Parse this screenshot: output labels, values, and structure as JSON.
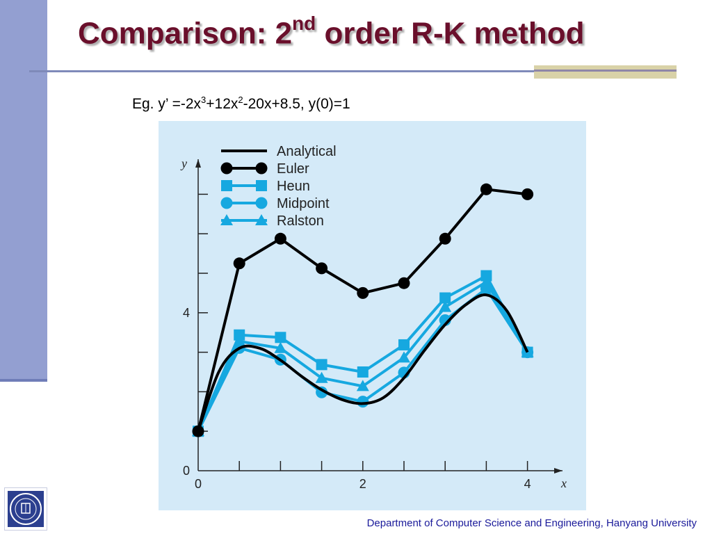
{
  "slide": {
    "title_main": "Comparison: 2",
    "title_sup": "nd",
    "title_rest": " order R-K method",
    "eq_prefix": "Eg. y’ =-2x",
    "eq_sup1": "3",
    "eq_mid": "+12x",
    "eq_sup2": "2",
    "eq_suffix": "-20x+8.5, y(0)=1",
    "footer": "Department of Computer Science and Engineering, Hanyang University",
    "logo_icon": "university-seal-icon"
  },
  "colors": {
    "title": "#6a0f2b",
    "sidebar": "#939fd1",
    "chart_bg": "#d4eaf8",
    "analytical": "#000000",
    "euler": "#000000",
    "rk": "#16a8e0",
    "footer": "#1a1a9a"
  },
  "chart_data": {
    "type": "line",
    "xlabel": "x",
    "ylabel": "y",
    "xlim": [
      0,
      4.4
    ],
    "ylim": [
      0,
      8.3
    ],
    "x_ticks": [
      0,
      0.5,
      1,
      1.5,
      2,
      2.5,
      3,
      3.5,
      4
    ],
    "x_tick_labels": [
      "0",
      "",
      "",
      "",
      "2",
      "",
      "",
      "",
      "4"
    ],
    "y_ticks": [
      1,
      2,
      3,
      4,
      5,
      6,
      7
    ],
    "y_tick_labels": [
      "",
      "",
      "",
      "4",
      "",
      "",
      ""
    ],
    "y_origin_label": "0",
    "legend_position": "top-left",
    "x": [
      0,
      0.5,
      1,
      1.5,
      2,
      2.5,
      3,
      3.5,
      4
    ],
    "series": [
      {
        "name": "Analytical",
        "marker": "none",
        "x": [
          0,
          0.25,
          0.5,
          0.75,
          1,
          1.25,
          1.5,
          1.75,
          2,
          2.25,
          2.5,
          2.75,
          3,
          3.25,
          3.5,
          3.75,
          4
        ],
        "values": [
          1,
          2.5,
          3.1,
          3.1,
          2.8,
          2.4,
          2.05,
          1.8,
          1.7,
          1.85,
          2.35,
          3.05,
          3.7,
          4.2,
          4.45,
          4.05,
          3.0
        ]
      },
      {
        "name": "Euler",
        "marker": "circle-black",
        "values": [
          1,
          5.25,
          5.875,
          5.125,
          4.5,
          4.75,
          5.875,
          7.125,
          7.0
        ]
      },
      {
        "name": "Heun",
        "marker": "square",
        "values": [
          1,
          3.4375,
          3.375,
          2.6875,
          2.5,
          3.1875,
          4.375,
          4.9375,
          3.0
        ]
      },
      {
        "name": "Midpoint",
        "marker": "circle",
        "values": [
          1,
          3.109375,
          2.8125,
          1.984375,
          1.75,
          2.484375,
          3.8125,
          4.609375,
          3.0
        ]
      },
      {
        "name": "Ralston",
        "marker": "triangle",
        "values": [
          1,
          3.277,
          3.102,
          2.347,
          2.141,
          2.863,
          4.144,
          4.778,
          3.0
        ]
      }
    ]
  }
}
